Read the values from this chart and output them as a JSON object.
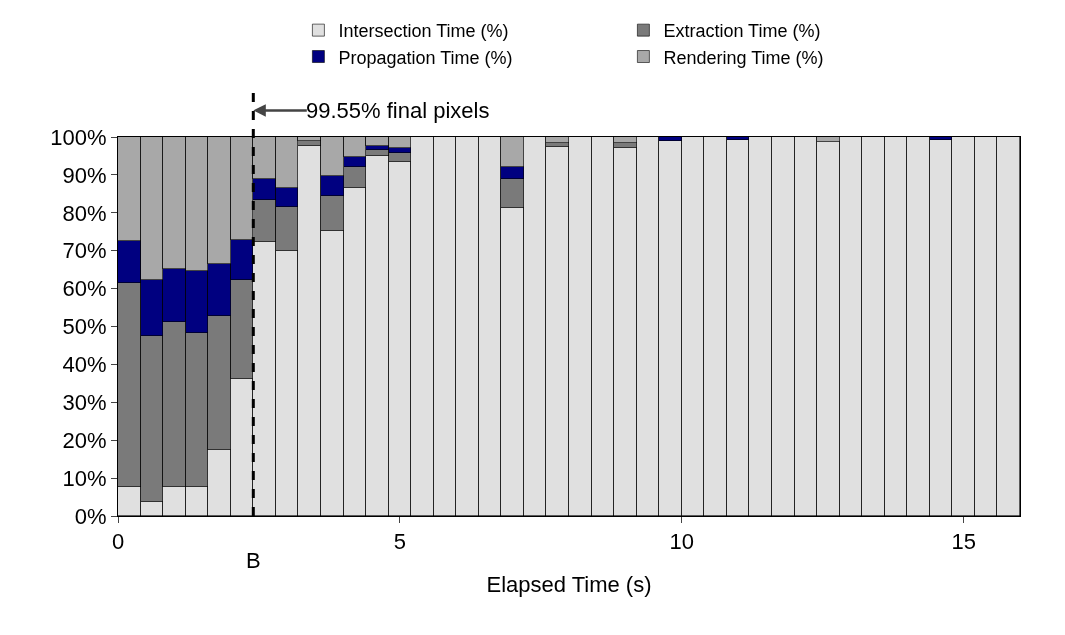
{
  "chart_data": {
    "type": "bar",
    "stacked": true,
    "xlabel": "Elapsed Time (s)",
    "x": [
      0.2,
      0.6,
      1.0,
      1.4,
      1.8,
      2.2,
      2.6,
      3.0,
      3.4,
      3.8,
      4.2,
      4.6,
      5.0,
      5.4,
      5.8,
      6.2,
      6.6,
      7.0,
      7.4,
      7.8,
      8.2,
      8.6,
      9.0,
      9.4,
      9.8,
      10.2,
      10.6,
      11.0,
      11.4,
      11.8,
      12.2,
      12.6,
      13.0,
      13.4,
      13.8,
      14.2,
      14.6,
      15.0,
      15.4,
      15.8
    ],
    "series": [
      {
        "name": "Intersection Time (%)",
        "color": "#e0e0e0",
        "values": [
          7.6,
          3.7,
          7.6,
          7.6,
          17.5,
          36.1,
          72.4,
          69.8,
          97.5,
          75.1,
          86.6,
          95.1,
          93.3,
          100,
          100,
          100,
          100,
          81.2,
          100,
          97.4,
          100,
          100,
          97.0,
          100,
          99.0,
          100,
          100,
          99.2,
          100,
          100,
          100,
          98.8,
          100,
          100,
          100,
          100,
          99.2,
          100,
          100,
          100
        ]
      },
      {
        "name": "Extraction Time (%)",
        "color": "#7a7a7a",
        "values": [
          54.0,
          43.9,
          43.6,
          40.8,
          35.2,
          26.1,
          11.0,
          11.6,
          1.5,
          9.4,
          5.6,
          1.5,
          2.6,
          0,
          0,
          0,
          0,
          7.7,
          0,
          1.1,
          0,
          0,
          1.3,
          0,
          0,
          0,
          0,
          0,
          0,
          0,
          0,
          0,
          0,
          0,
          0,
          0,
          0,
          0,
          0,
          0
        ]
      },
      {
        "name": "Propagation Time (%)",
        "color": "#000080",
        "values": [
          10.9,
          14.8,
          14.0,
          16.2,
          13.8,
          10.6,
          5.4,
          5.2,
          0,
          5.1,
          2.4,
          1.0,
          1.1,
          0,
          0,
          0,
          0,
          3.1,
          0,
          0,
          0,
          0,
          0,
          0,
          1.0,
          0,
          0,
          0.8,
          0,
          0,
          0,
          0,
          0,
          0,
          0,
          0,
          0.8,
          0,
          0,
          0
        ]
      },
      {
        "name": "Rendering Time (%)",
        "color": "#a8a8a8",
        "values": [
          27.5,
          37.6,
          34.8,
          35.4,
          33.5,
          27.2,
          11.2,
          13.4,
          1.0,
          10.4,
          5.4,
          2.4,
          3.0,
          0,
          0,
          0,
          0,
          8.0,
          0,
          1.5,
          0,
          0,
          1.7,
          0,
          0,
          0,
          0,
          0,
          0,
          0,
          0,
          1.2,
          0,
          0,
          0,
          0,
          0,
          0,
          0,
          0
        ]
      }
    ],
    "xlim": [
      0,
      16
    ],
    "xticks": [
      0,
      5,
      10,
      15
    ],
    "ylim": [
      0,
      100
    ],
    "yticks": [
      {
        "value": 0,
        "label": "0%"
      },
      {
        "value": 10,
        "label": "10%"
      },
      {
        "value": 20,
        "label": "20%"
      },
      {
        "value": 30,
        "label": "30%"
      },
      {
        "value": 40,
        "label": "40%"
      },
      {
        "value": 50,
        "label": "50%"
      },
      {
        "value": 60,
        "label": "60%"
      },
      {
        "value": 70,
        "label": "70%"
      },
      {
        "value": 80,
        "label": "80%"
      },
      {
        "value": 90,
        "label": "90%"
      },
      {
        "value": 100,
        "label": "100%"
      }
    ],
    "ref_lines": [
      {
        "axis": "x",
        "value": 2.4,
        "label": "B",
        "line_style": "dashed",
        "color": "#000000"
      }
    ],
    "annotations": [
      "99.55% final pixels"
    ],
    "legend": "top"
  }
}
